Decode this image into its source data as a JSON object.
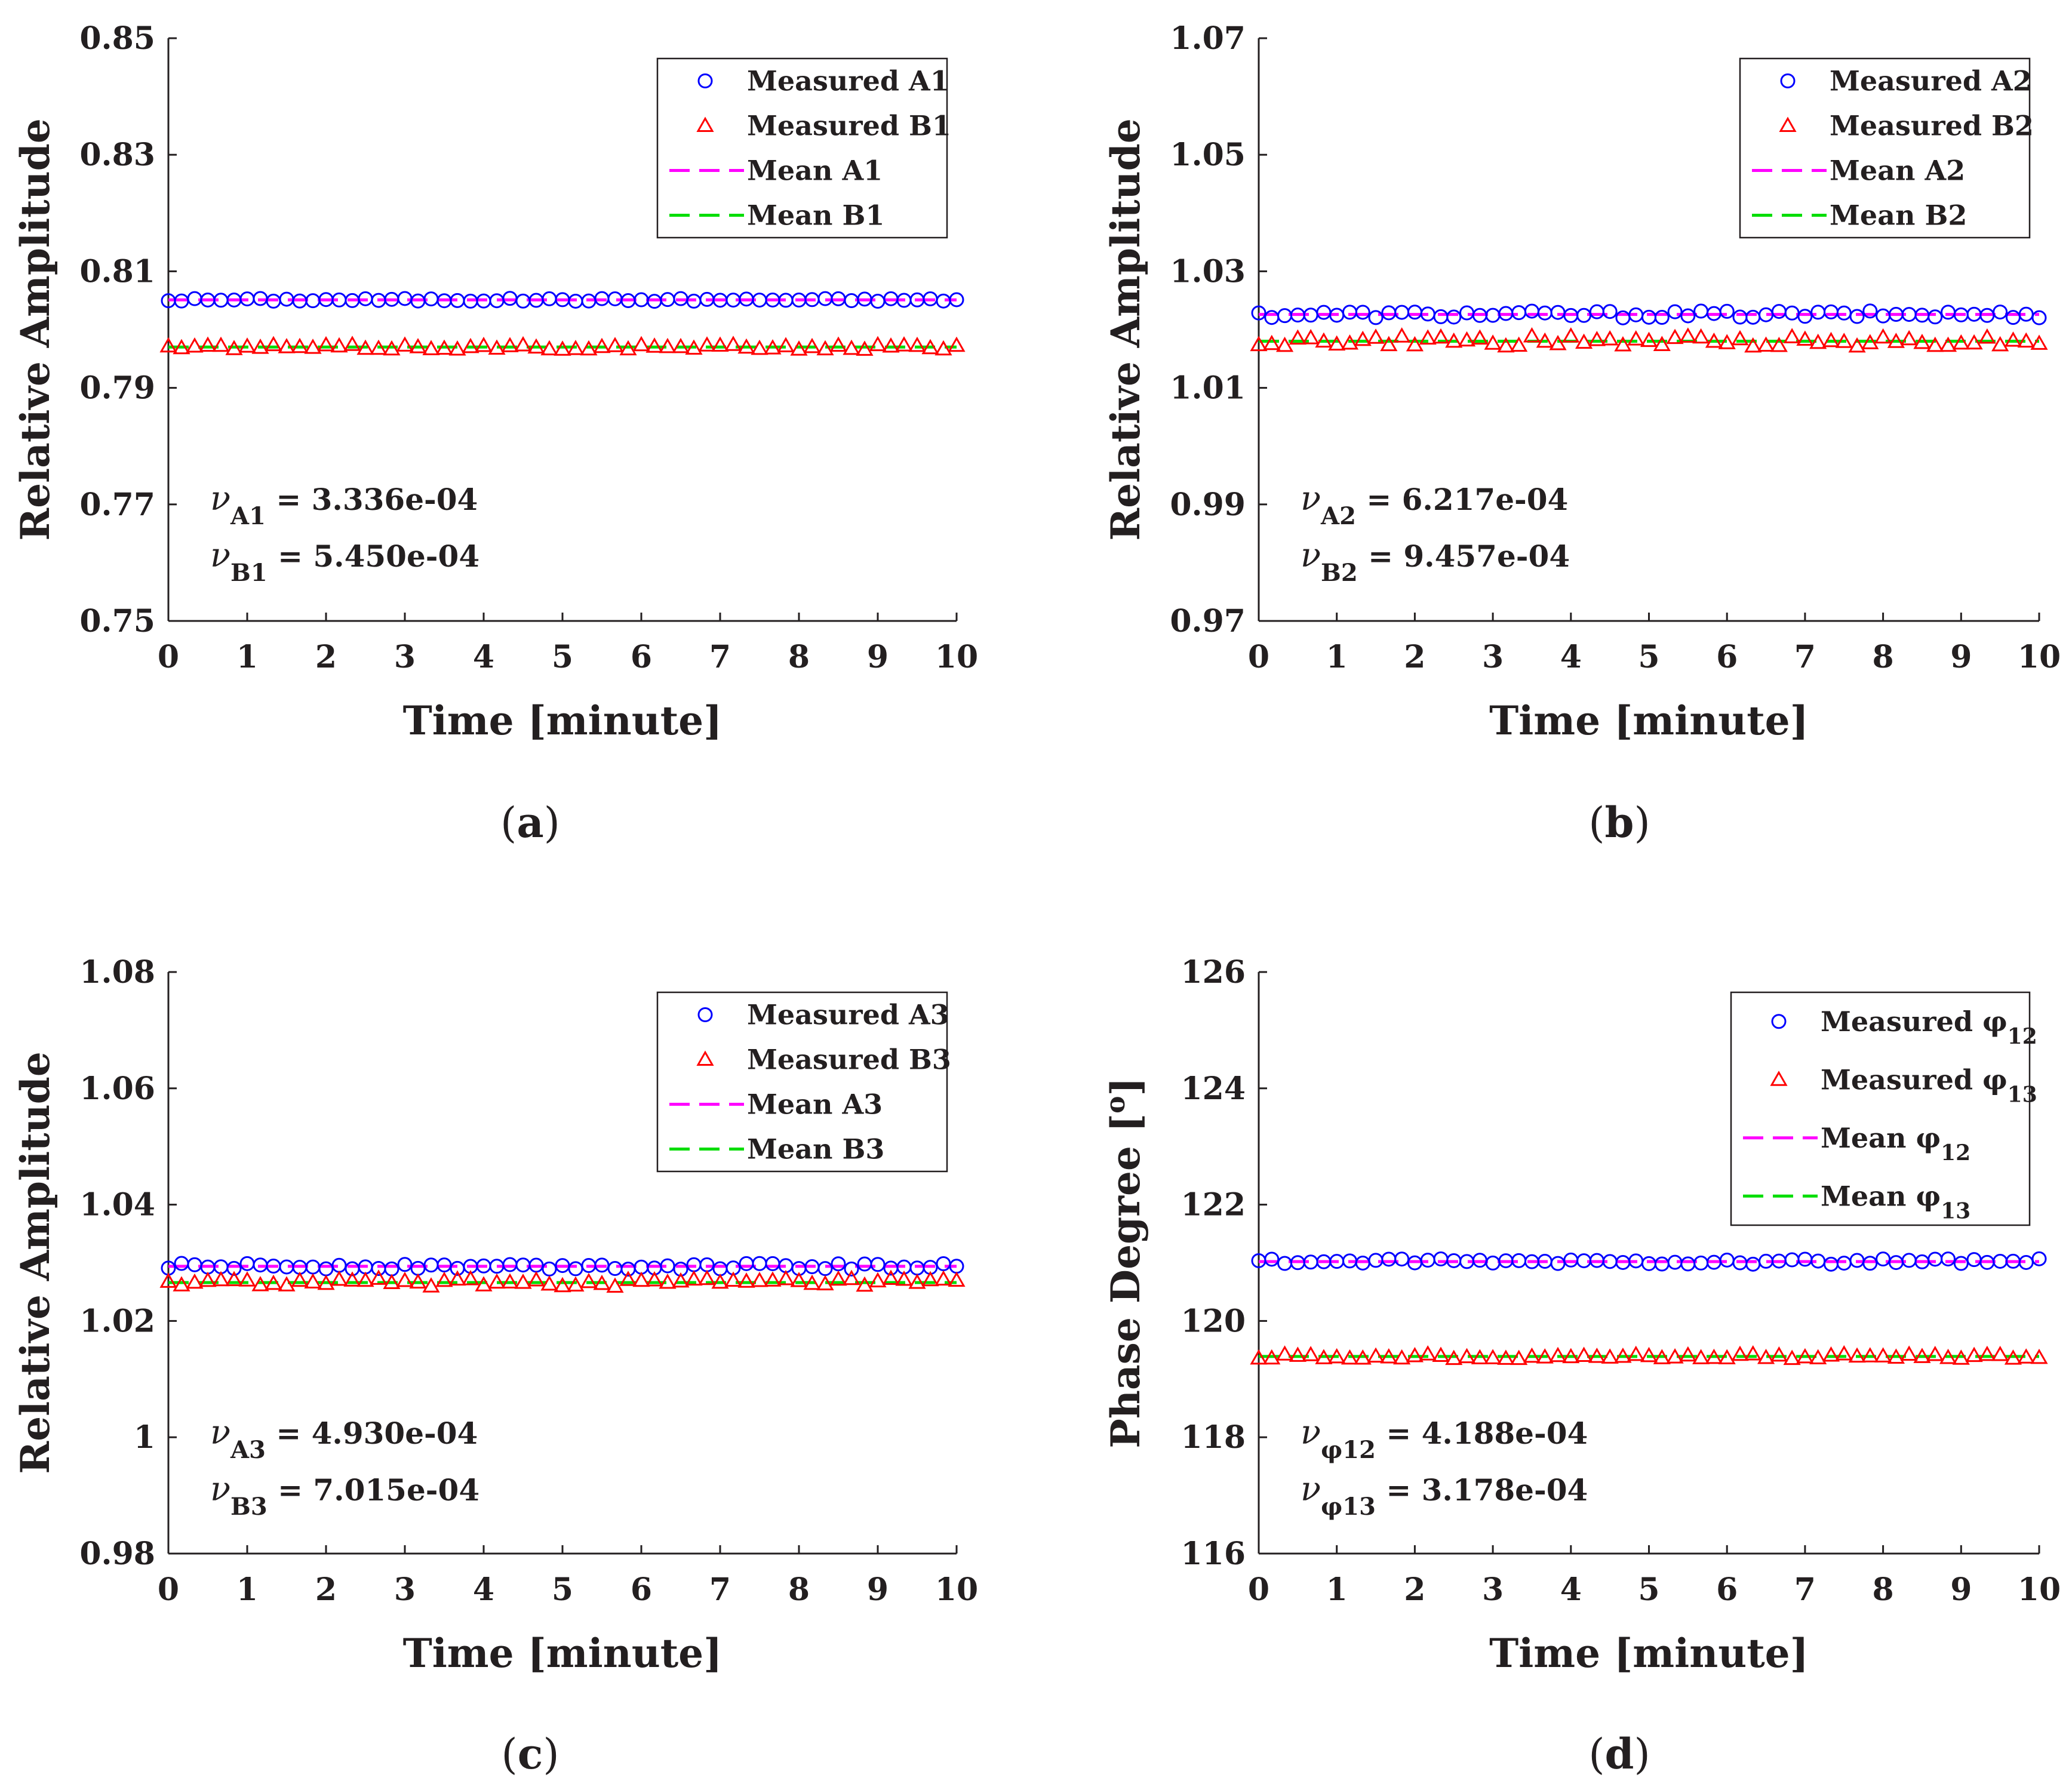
{
  "chart_data": [
    {
      "type": "scatter",
      "panel_label": "a",
      "xlabel": "Time [minute]",
      "ylabel": "Relative Amplitude",
      "xlim": [
        0,
        10
      ],
      "ylim": [
        0.75,
        0.85
      ],
      "xticks": [
        "0",
        "1",
        "2",
        "3",
        "4",
        "5",
        "6",
        "7",
        "8",
        "9",
        "10"
      ],
      "yticks": [
        "0.75",
        "0.77",
        "0.79",
        "0.81",
        "0.83",
        "0.85"
      ],
      "legend_position": "top-right",
      "series": [
        {
          "name": "Measured A1",
          "marker": "circle",
          "color": "#0000ff",
          "mean": 0.8051,
          "noise": 0.00027
        },
        {
          "name": "Measured B1",
          "marker": "triangle",
          "color": "#ff0000",
          "mean": 0.797,
          "noise": 0.00043
        }
      ],
      "mean_lines": [
        {
          "name": "Mean A1",
          "value": 0.8051,
          "color": "#ff00ff"
        },
        {
          "name": "Mean B1",
          "value": 0.797,
          "color": "#00dd00"
        }
      ],
      "legend": {
        "entries": [
          {
            "label_main": "Measured A1",
            "label_sub": ""
          },
          {
            "label_main": "Measured B1",
            "label_sub": ""
          },
          {
            "label_main": "Mean A1",
            "label_sub": ""
          },
          {
            "label_main": "Mean B1",
            "label_sub": ""
          }
        ]
      },
      "annotations": [
        {
          "symbol": "ν",
          "sub": "A1",
          "value": " = 3.336e-04"
        },
        {
          "symbol": "ν",
          "sub": "B1",
          "value": " = 5.450e-04"
        }
      ]
    },
    {
      "type": "scatter",
      "panel_label": "b",
      "xlabel": "Time [minute]",
      "ylabel": "Relative Amplitude",
      "xlim": [
        0,
        10
      ],
      "ylim": [
        0.97,
        1.07
      ],
      "xticks": [
        "0",
        "1",
        "2",
        "3",
        "4",
        "5",
        "6",
        "7",
        "8",
        "9",
        "10"
      ],
      "yticks": [
        "0.97",
        "0.99",
        "1.01",
        "1.03",
        "1.05",
        "1.07"
      ],
      "legend_position": "top-right",
      "series": [
        {
          "name": "Measured A2",
          "marker": "circle",
          "color": "#0000ff",
          "mean": 1.0226,
          "noise": 0.0006
        },
        {
          "name": "Measured B2",
          "marker": "triangle",
          "color": "#ff0000",
          "mean": 1.018,
          "noise": 0.0009
        }
      ],
      "mean_lines": [
        {
          "name": "Mean A2",
          "value": 1.0226,
          "color": "#ff00ff"
        },
        {
          "name": "Mean B2",
          "value": 1.018,
          "color": "#00dd00"
        }
      ],
      "legend": {
        "entries": [
          {
            "label_main": "Measured A2",
            "label_sub": ""
          },
          {
            "label_main": "Measured B2",
            "label_sub": ""
          },
          {
            "label_main": "Mean A2",
            "label_sub": ""
          },
          {
            "label_main": "Mean B2",
            "label_sub": ""
          }
        ]
      },
      "annotations": [
        {
          "symbol": "ν",
          "sub": "A2",
          "value": " = 6.217e-04"
        },
        {
          "symbol": "ν",
          "sub": "B2",
          "value": " = 9.457e-04"
        }
      ]
    },
    {
      "type": "scatter",
      "panel_label": "c",
      "xlabel": "Time [minute]",
      "ylabel": "Relative Amplitude",
      "xlim": [
        0,
        10
      ],
      "ylim": [
        0.98,
        1.08
      ],
      "xticks": [
        "0",
        "1",
        "2",
        "3",
        "4",
        "5",
        "6",
        "7",
        "8",
        "9",
        "10"
      ],
      "yticks": [
        "0.98",
        "1",
        "1.02",
        "1.04",
        "1.06",
        "1.08"
      ],
      "legend_position": "top-right",
      "series": [
        {
          "name": "Measured A3",
          "marker": "circle",
          "color": "#0000ff",
          "mean": 1.0294,
          "noise": 0.0005
        },
        {
          "name": "Measured B3",
          "marker": "triangle",
          "color": "#ff0000",
          "mean": 1.0266,
          "noise": 0.0007
        }
      ],
      "mean_lines": [
        {
          "name": "Mean A3",
          "value": 1.0294,
          "color": "#ff00ff"
        },
        {
          "name": "Mean B3",
          "value": 1.0266,
          "color": "#00dd00"
        }
      ],
      "legend": {
        "entries": [
          {
            "label_main": "Measured A3",
            "label_sub": ""
          },
          {
            "label_main": "Measured B3",
            "label_sub": ""
          },
          {
            "label_main": "Mean A3",
            "label_sub": ""
          },
          {
            "label_main": "Mean B3",
            "label_sub": ""
          }
        ]
      },
      "annotations": [
        {
          "symbol": "ν",
          "sub": "A3",
          "value": " = 4.930e-04"
        },
        {
          "symbol": "ν",
          "sub": "B3",
          "value": " = 7.015e-04"
        }
      ]
    },
    {
      "type": "scatter",
      "panel_label": "d",
      "xlabel": "Time [minute]",
      "ylabel": "Phase Degree [",
      "ylabel_sup": "o",
      "ylabel_end": "]",
      "xlim": [
        0,
        10
      ],
      "ylim": [
        116,
        126
      ],
      "xticks": [
        "0",
        "1",
        "2",
        "3",
        "4",
        "5",
        "6",
        "7",
        "8",
        "9",
        "10"
      ],
      "yticks": [
        "116",
        "118",
        "120",
        "122",
        "124",
        "126"
      ],
      "legend_position": "top-right",
      "series": [
        {
          "name": "Measured φ12",
          "marker": "circle",
          "color": "#0000ff",
          "mean": 121.02,
          "noise": 0.05
        },
        {
          "name": "Measured φ13",
          "marker": "triangle",
          "color": "#ff0000",
          "mean": 119.39,
          "noise": 0.04
        }
      ],
      "mean_lines": [
        {
          "name": "Mean φ12",
          "value": 121.02,
          "color": "#ff00ff"
        },
        {
          "name": "Mean φ13",
          "value": 119.39,
          "color": "#00dd00"
        }
      ],
      "legend": {
        "entries": [
          {
            "label_main": "Measured φ",
            "label_sub": "12"
          },
          {
            "label_main": "Measured φ",
            "label_sub": "13"
          },
          {
            "label_main": "Mean φ",
            "label_sub": "12"
          },
          {
            "label_main": "Mean φ",
            "label_sub": "13"
          }
        ]
      },
      "annotations": [
        {
          "symbol": "ν",
          "sub": "φ12",
          "value": " = 4.188e-04"
        },
        {
          "symbol": "ν",
          "sub": "φ13",
          "value": " = 3.178e-04"
        }
      ]
    }
  ]
}
